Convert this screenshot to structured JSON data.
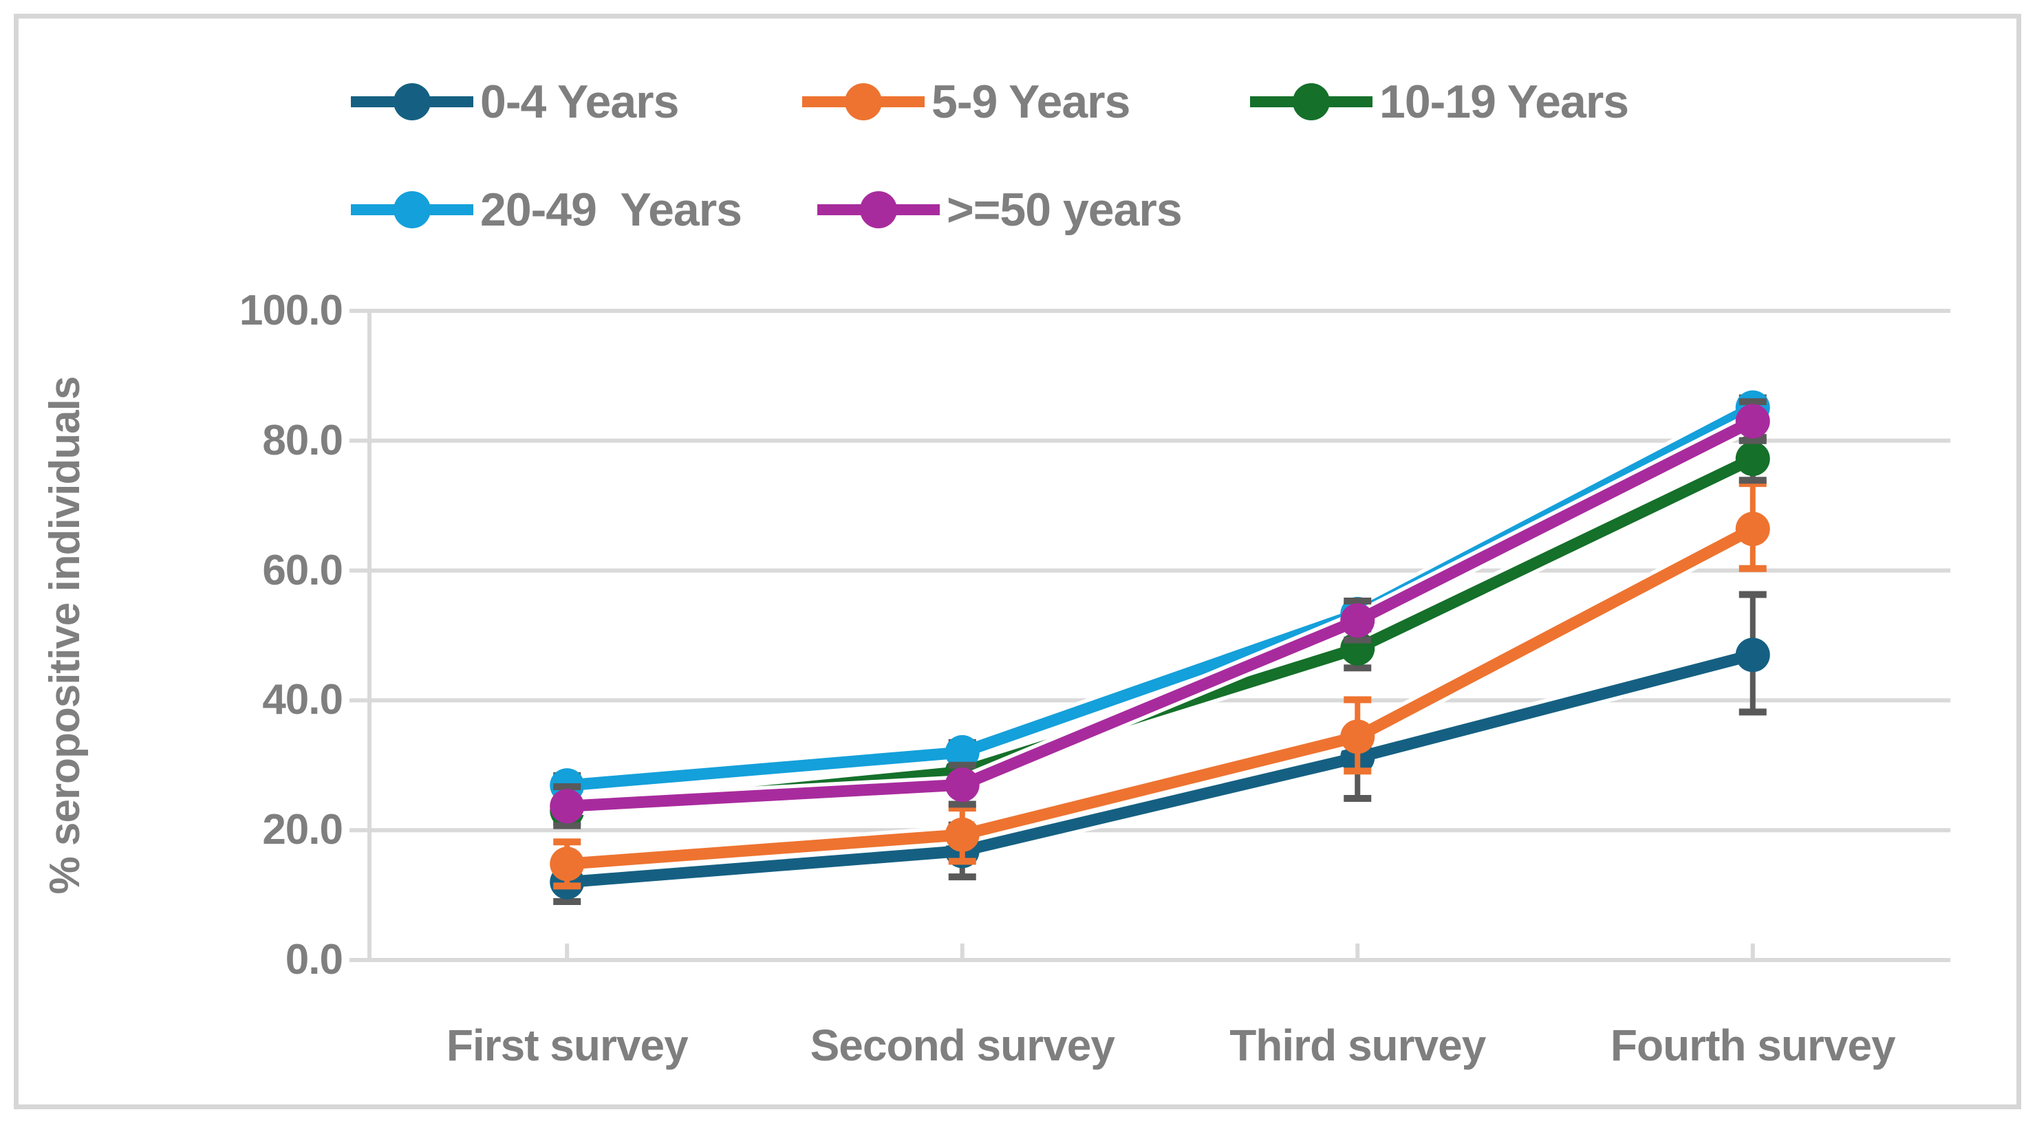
{
  "y_axis": {
    "title": "% seropositive individuals",
    "tick_labels": [
      "100.0",
      "80.0",
      "60.0",
      "40.0",
      "20.0",
      "0.0"
    ]
  },
  "x_axis": {
    "categories": [
      "First survey",
      "Second survey",
      "Third survey",
      "Fourth survey"
    ]
  },
  "chart_data": {
    "type": "line",
    "title": "",
    "xlabel": "",
    "ylabel": "% seropositive individuals",
    "categories": [
      "First survey",
      "Second survey",
      "Third survey",
      "Fourth survey"
    ],
    "ylim": [
      0,
      100
    ],
    "ytick_interval": 20,
    "grid": true,
    "legend_position": "top",
    "marker": "circle",
    "error_bars": true,
    "series": [
      {
        "name": "0-4 Years",
        "color": "#156082",
        "error_color": "#595959",
        "values": [
          12.0,
          16.8,
          31.2,
          47.0
        ],
        "error_minus": [
          3.0,
          4.0,
          6.3,
          8.8
        ],
        "error_plus": [
          3.0,
          4.0,
          2.3,
          9.3
        ]
      },
      {
        "name": "5-9 Years",
        "color": "#EE7330",
        "error_color": "#EE7330",
        "values": [
          14.8,
          19.3,
          34.4,
          66.4
        ],
        "error_minus": [
          3.4,
          4.1,
          5.3,
          6.1
        ],
        "error_plus": [
          3.4,
          4.1,
          5.7,
          7.0
        ]
      },
      {
        "name": "10-19 Years",
        "color": "#15702A",
        "error_color": "#595959",
        "values": [
          23.0,
          29.0,
          48.0,
          77.2
        ],
        "error_minus": [
          1.8,
          1.8,
          3.0,
          3.3
        ],
        "error_plus": [
          1.8,
          1.8,
          3.0,
          3.3
        ]
      },
      {
        "name": "20-49  Years",
        "color": "#14A0DA",
        "error_color": "#595959",
        "values": [
          26.9,
          32.0,
          53.3,
          85.1
        ],
        "error_minus": [
          1.5,
          1.5,
          1.5,
          1.5
        ],
        "error_plus": [
          1.5,
          1.5,
          1.5,
          1.5
        ]
      },
      {
        "name": ">=50 years",
        "color": "#A82B9D",
        "error_color": "#595959",
        "values": [
          23.7,
          27.0,
          52.3,
          83.0
        ],
        "error_minus": [
          3.0,
          3.0,
          3.0,
          3.0
        ],
        "error_plus": [
          3.0,
          3.0,
          3.0,
          3.0
        ]
      }
    ]
  },
  "colors": {
    "gridline": "#D9D9D9",
    "axis_text": "#7F7F7F",
    "frame_border": "#D6D6D6",
    "error_default": "#595959",
    "background": "#FFFFFF"
  }
}
